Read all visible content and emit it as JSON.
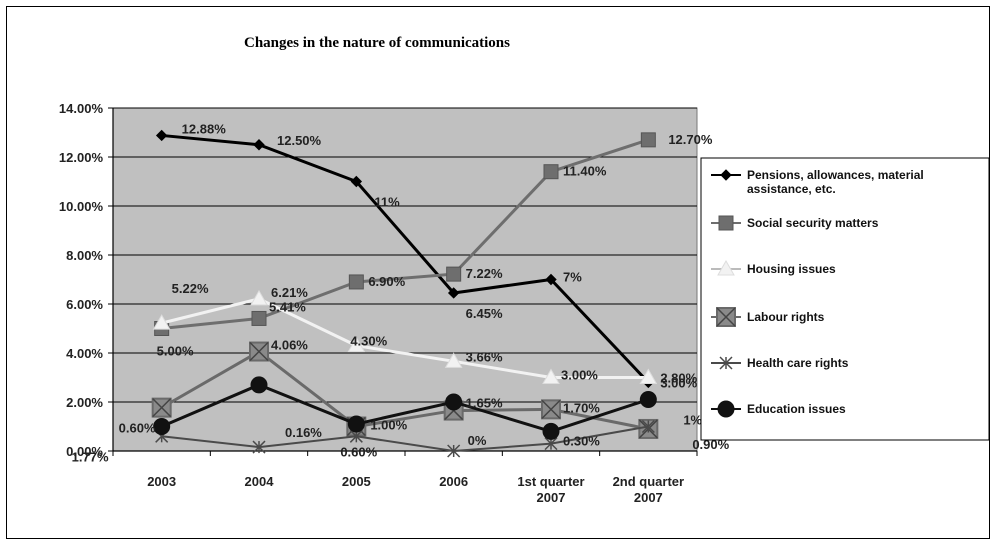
{
  "chart_data": {
    "type": "line",
    "title": "Changes in the nature of communications",
    "xlabel": "",
    "ylabel": "",
    "categories": [
      "2003",
      "2004",
      "2005",
      "2006",
      "1st quarter 2007",
      "2nd quarter 2007"
    ],
    "ylim": [
      0,
      14
    ],
    "yticks": [
      "0.00%",
      "2.00%",
      "4.00%",
      "6.00%",
      "8.00%",
      "10.00%",
      "12.00%",
      "14.00%"
    ],
    "grid": true,
    "legend_position": "right",
    "plot_background": "#c0c0c0",
    "series": [
      {
        "name": "Pensions, allowances, material assistance, etc.",
        "color": "#000000",
        "marker": "diamond",
        "values": [
          12.88,
          12.5,
          11,
          6.45,
          7,
          2.8
        ],
        "labels": [
          "12.88%",
          "12.50%",
          "11%",
          "6.45%",
          "7%",
          "2.80%"
        ]
      },
      {
        "name": "Social security matters",
        "color": "#6e6e6e",
        "marker": "square",
        "values": [
          5.0,
          5.41,
          6.9,
          7.22,
          11.4,
          12.7
        ],
        "labels": [
          "5.00%",
          "5.41%",
          "6.90%",
          "7.22%",
          "11.40%",
          "12.70%"
        ]
      },
      {
        "name": "Housing issues",
        "color": "#f2f2f2",
        "marker": "triangle",
        "values": [
          5.22,
          6.21,
          4.3,
          3.66,
          3.0,
          3.0
        ],
        "labels": [
          "5.22%",
          "6.21%",
          "4.30%",
          "3.66%",
          "3.00%",
          "3.00%"
        ]
      },
      {
        "name": "Labour rights",
        "color": "#6a6a6a",
        "marker": "xsquare",
        "values": [
          1.77,
          4.06,
          1.0,
          1.65,
          1.7,
          0.9
        ],
        "labels": [
          "1.77%",
          "4.06%",
          "1.00%",
          "1.65%",
          "1.70%",
          "0.90%"
        ]
      },
      {
        "name": "Health care rights",
        "color": "#4a4a4a",
        "marker": "star",
        "values": [
          0.6,
          0.16,
          0.6,
          0,
          0.3,
          1
        ],
        "labels": [
          "0.60%",
          "0.16%",
          "0.60%",
          "0%",
          "0.30%",
          "1%"
        ]
      },
      {
        "name": "Education issues",
        "color": "#111111",
        "marker": "circle",
        "values": [
          1.0,
          2.7,
          1.1,
          2.0,
          0.8,
          2.1
        ],
        "labels": []
      }
    ]
  }
}
